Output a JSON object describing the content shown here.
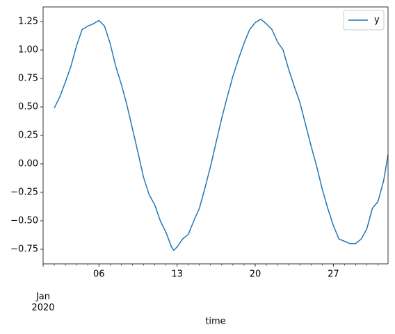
{
  "chart_data": {
    "type": "line",
    "x_label": "time",
    "x": [
      2.0,
      2.5,
      3.0,
      3.5,
      4.0,
      4.5,
      5.0,
      5.5,
      6.0,
      6.5,
      7.0,
      7.5,
      8.0,
      8.5,
      9.0,
      9.5,
      10.0,
      10.5,
      11.0,
      11.5,
      12.0,
      12.5,
      12.7,
      13.0,
      13.5,
      14.0,
      14.5,
      15.0,
      15.5,
      16.0,
      16.5,
      17.0,
      17.5,
      18.0,
      18.5,
      19.0,
      19.5,
      20.0,
      20.5,
      21.0,
      21.5,
      22.0,
      22.5,
      23.0,
      23.5,
      24.0,
      24.5,
      25.0,
      25.5,
      26.0,
      26.5,
      27.0,
      27.5,
      28.0,
      28.5,
      29.0,
      29.5,
      30.0,
      30.5,
      31.0,
      31.5,
      31.9
    ],
    "series": [
      {
        "name": "y",
        "color": "#1f77b4",
        "values": [
          0.49,
          0.59,
          0.72,
          0.86,
          1.04,
          1.18,
          1.21,
          1.23,
          1.26,
          1.21,
          1.06,
          0.86,
          0.7,
          0.52,
          0.31,
          0.1,
          -0.12,
          -0.27,
          -0.36,
          -0.5,
          -0.6,
          -0.73,
          -0.76,
          -0.73,
          -0.66,
          -0.62,
          -0.5,
          -0.39,
          -0.21,
          -0.02,
          0.19,
          0.4,
          0.59,
          0.77,
          0.92,
          1.06,
          1.18,
          1.24,
          1.27,
          1.23,
          1.18,
          1.07,
          1.0,
          0.83,
          0.68,
          0.54,
          0.35,
          0.16,
          -0.02,
          -0.22,
          -0.39,
          -0.54,
          -0.66,
          -0.68,
          -0.7,
          -0.7,
          -0.66,
          -0.57,
          -0.39,
          -0.33,
          -0.15,
          0.08
        ]
      }
    ],
    "xlim": [
      1,
      31.9
    ],
    "xticks": [
      {
        "value": 1,
        "label": "Jan\n2020"
      },
      {
        "value": 6,
        "label": "06"
      },
      {
        "value": 13,
        "label": "13"
      },
      {
        "value": 20,
        "label": "20"
      },
      {
        "value": 27,
        "label": "27"
      }
    ],
    "xminorticks": [
      2,
      3,
      4,
      5,
      7,
      8,
      9,
      10,
      11,
      12,
      14,
      15,
      16,
      17,
      18,
      19,
      21,
      22,
      23,
      24,
      25,
      26,
      28,
      29,
      30,
      31
    ],
    "ylim": [
      -0.878,
      1.378
    ],
    "yticks": [
      {
        "value": -0.75,
        "label": "−0.75"
      },
      {
        "value": -0.5,
        "label": "−0.50"
      },
      {
        "value": -0.25,
        "label": "−0.25"
      },
      {
        "value": 0,
        "label": "0.00"
      },
      {
        "value": 0.25,
        "label": "0.25"
      },
      {
        "value": 0.5,
        "label": "0.50"
      },
      {
        "value": 0.75,
        "label": "0.75"
      },
      {
        "value": 1,
        "label": "1.00"
      },
      {
        "value": 1.25,
        "label": "1.25"
      }
    ],
    "legend": "upper right"
  }
}
